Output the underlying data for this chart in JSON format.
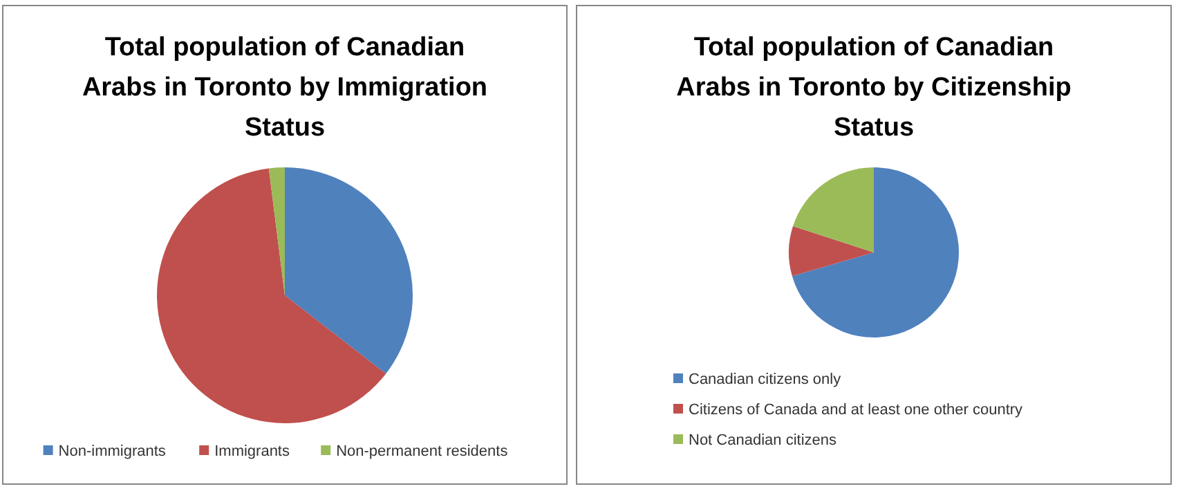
{
  "chart_data": [
    {
      "type": "pie",
      "title": "Total population of Canadian Arabs in Toronto by Immigration Status",
      "categories": [
        "Non-immigrants",
        "Immigrants",
        "Non-permanent residents"
      ],
      "values": [
        35.5,
        62.5,
        2
      ],
      "colors": [
        "#4f81bd",
        "#c0504d",
        "#9bbb59"
      ],
      "legend": "bottom"
    },
    {
      "type": "pie",
      "title": "Total population of Canadian Arabs in Toronto by Citizenship Status",
      "categories": [
        "Canadian citizens only",
        "Citizens of Canada and at least one other country",
        "Not Canadian citizens"
      ],
      "values": [
        70.5,
        9.5,
        20
      ],
      "colors": [
        "#4f81bd",
        "#c0504d",
        "#9bbb59"
      ],
      "legend": "bottom"
    }
  ]
}
